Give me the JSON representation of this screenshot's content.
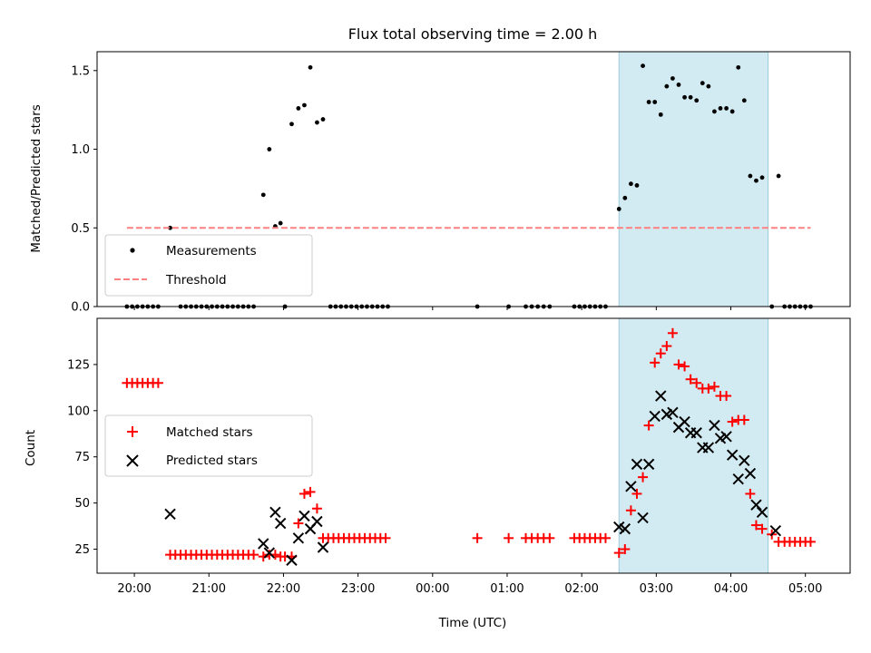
{
  "chart_data": [
    {
      "type": "scatter",
      "title": "Flux total observing time = 2.00 h",
      "xlabel": "",
      "ylabel": "Matched/Predicted stars",
      "xlim": [
        19.5,
        29.6
      ],
      "ylim": [
        0,
        1.62
      ],
      "yticks": [
        0.0,
        0.5,
        1.0,
        1.5
      ],
      "ytick_labels": [
        "0.0",
        "0.5",
        "1.0",
        "1.5"
      ],
      "shaded_span": {
        "x": [
          26.5,
          28.5
        ],
        "color": "#add8e6"
      },
      "legend": {
        "position": "lower-left",
        "entries": [
          "Measurements",
          "Threshold"
        ]
      },
      "series": [
        {
          "name": "Measurements",
          "marker": "dot",
          "color": "#000000",
          "points": [
            [
              19.9,
              0
            ],
            [
              19.97,
              0
            ],
            [
              20.04,
              0
            ],
            [
              20.11,
              0
            ],
            [
              20.18,
              0
            ],
            [
              20.25,
              0
            ],
            [
              20.32,
              0
            ],
            [
              20.48,
              0.5
            ],
            [
              20.62,
              0
            ],
            [
              20.69,
              0
            ],
            [
              20.76,
              0
            ],
            [
              20.83,
              0
            ],
            [
              20.9,
              0
            ],
            [
              20.97,
              0
            ],
            [
              21.04,
              0
            ],
            [
              21.11,
              0
            ],
            [
              21.18,
              0
            ],
            [
              21.25,
              0
            ],
            [
              21.32,
              0
            ],
            [
              21.39,
              0
            ],
            [
              21.46,
              0
            ],
            [
              21.53,
              0
            ],
            [
              21.6,
              0
            ],
            [
              21.73,
              0.71
            ],
            [
              21.81,
              1.0
            ],
            [
              21.89,
              0.51
            ],
            [
              21.96,
              0.53
            ],
            [
              22.02,
              0
            ],
            [
              22.11,
              1.16
            ],
            [
              22.2,
              1.26
            ],
            [
              22.28,
              1.28
            ],
            [
              22.36,
              1.52
            ],
            [
              22.45,
              1.17
            ],
            [
              22.53,
              1.19
            ],
            [
              22.63,
              0
            ],
            [
              22.7,
              0
            ],
            [
              22.77,
              0
            ],
            [
              22.84,
              0
            ],
            [
              22.91,
              0
            ],
            [
              22.98,
              0
            ],
            [
              23.05,
              0
            ],
            [
              23.12,
              0
            ],
            [
              23.19,
              0
            ],
            [
              23.26,
              0
            ],
            [
              23.33,
              0
            ],
            [
              23.4,
              0
            ],
            [
              24.6,
              0
            ],
            [
              25.02,
              0
            ],
            [
              25.25,
              0
            ],
            [
              25.33,
              0
            ],
            [
              25.41,
              0
            ],
            [
              25.49,
              0
            ],
            [
              25.57,
              0
            ],
            [
              25.9,
              0
            ],
            [
              25.97,
              0
            ],
            [
              26.04,
              0
            ],
            [
              26.11,
              0
            ],
            [
              26.18,
              0
            ],
            [
              26.25,
              0
            ],
            [
              26.32,
              0
            ],
            [
              26.5,
              0.62
            ],
            [
              26.58,
              0.69
            ],
            [
              26.66,
              0.78
            ],
            [
              26.74,
              0.77
            ],
            [
              26.82,
              1.53
            ],
            [
              26.9,
              1.3
            ],
            [
              26.98,
              1.3
            ],
            [
              27.06,
              1.22
            ],
            [
              27.14,
              1.4
            ],
            [
              27.22,
              1.45
            ],
            [
              27.3,
              1.41
            ],
            [
              27.38,
              1.33
            ],
            [
              27.46,
              1.33
            ],
            [
              27.54,
              1.31
            ],
            [
              27.62,
              1.42
            ],
            [
              27.7,
              1.4
            ],
            [
              27.78,
              1.24
            ],
            [
              27.86,
              1.26
            ],
            [
              27.94,
              1.26
            ],
            [
              28.02,
              1.24
            ],
            [
              28.1,
              1.52
            ],
            [
              28.18,
              1.31
            ],
            [
              28.26,
              0.83
            ],
            [
              28.34,
              0.8
            ],
            [
              28.42,
              0.82
            ],
            [
              28.55,
              0
            ],
            [
              28.64,
              0.83
            ],
            [
              28.72,
              0
            ],
            [
              28.79,
              0
            ],
            [
              28.86,
              0
            ],
            [
              28.93,
              0
            ],
            [
              29.0,
              0
            ],
            [
              29.07,
              0
            ]
          ]
        },
        {
          "name": "Threshold",
          "marker": "dashed-line",
          "color": "#ff8080",
          "x": [
            19.9,
            29.07
          ],
          "y": [
            0.5,
            0.5
          ]
        }
      ]
    },
    {
      "type": "scatter",
      "title": "",
      "xlabel": "Time (UTC)",
      "ylabel": "Count",
      "xlim": [
        19.5,
        29.6
      ],
      "ylim": [
        12,
        150
      ],
      "yticks": [
        25,
        50,
        75,
        100,
        125
      ],
      "ytick_labels": [
        "25",
        "50",
        "75",
        "100",
        "125"
      ],
      "xticks": [
        20,
        21,
        22,
        23,
        24,
        25,
        26,
        27,
        28,
        29
      ],
      "xtick_labels": [
        "20:00",
        "21:00",
        "22:00",
        "23:00",
        "00:00",
        "01:00",
        "02:00",
        "03:00",
        "04:00",
        "05:00"
      ],
      "shaded_span": {
        "x": [
          26.5,
          28.5
        ],
        "color": "#add8e6"
      },
      "legend": {
        "position": "center-left",
        "entries": [
          "Matched stars",
          "Predicted stars"
        ]
      },
      "series": [
        {
          "name": "Matched stars",
          "marker": "plus",
          "color": "#ff0000",
          "points": [
            [
              19.9,
              115
            ],
            [
              19.97,
              115
            ],
            [
              20.04,
              115
            ],
            [
              20.11,
              115
            ],
            [
              20.18,
              115
            ],
            [
              20.25,
              115
            ],
            [
              20.32,
              115
            ],
            [
              20.48,
              22
            ],
            [
              20.55,
              22
            ],
            [
              20.62,
              22
            ],
            [
              20.69,
              22
            ],
            [
              20.76,
              22
            ],
            [
              20.83,
              22
            ],
            [
              20.9,
              22
            ],
            [
              20.97,
              22
            ],
            [
              21.04,
              22
            ],
            [
              21.11,
              22
            ],
            [
              21.18,
              22
            ],
            [
              21.25,
              22
            ],
            [
              21.32,
              22
            ],
            [
              21.39,
              22
            ],
            [
              21.46,
              22
            ],
            [
              21.53,
              22
            ],
            [
              21.6,
              22
            ],
            [
              21.73,
              21
            ],
            [
              21.81,
              22
            ],
            [
              21.89,
              22
            ],
            [
              21.96,
              21
            ],
            [
              22.02,
              21
            ],
            [
              22.11,
              21
            ],
            [
              22.2,
              39
            ],
            [
              22.28,
              55
            ],
            [
              22.36,
              56
            ],
            [
              22.45,
              47
            ],
            [
              22.53,
              31
            ],
            [
              22.6,
              31
            ],
            [
              22.67,
              31
            ],
            [
              22.74,
              31
            ],
            [
              22.81,
              31
            ],
            [
              22.88,
              31
            ],
            [
              22.95,
              31
            ],
            [
              23.02,
              31
            ],
            [
              23.09,
              31
            ],
            [
              23.16,
              31
            ],
            [
              23.23,
              31
            ],
            [
              23.3,
              31
            ],
            [
              23.37,
              31
            ],
            [
              24.6,
              31
            ],
            [
              25.02,
              31
            ],
            [
              25.25,
              31
            ],
            [
              25.33,
              31
            ],
            [
              25.41,
              31
            ],
            [
              25.49,
              31
            ],
            [
              25.57,
              31
            ],
            [
              25.9,
              31
            ],
            [
              25.97,
              31
            ],
            [
              26.04,
              31
            ],
            [
              26.11,
              31
            ],
            [
              26.18,
              31
            ],
            [
              26.25,
              31
            ],
            [
              26.32,
              31
            ],
            [
              26.5,
              23
            ],
            [
              26.58,
              25
            ],
            [
              26.66,
              46
            ],
            [
              26.74,
              55
            ],
            [
              26.82,
              64
            ],
            [
              26.9,
              92
            ],
            [
              26.98,
              126
            ],
            [
              27.06,
              131
            ],
            [
              27.14,
              135
            ],
            [
              27.22,
              142
            ],
            [
              27.3,
              125
            ],
            [
              27.38,
              124
            ],
            [
              27.46,
              117
            ],
            [
              27.54,
              115
            ],
            [
              27.62,
              112
            ],
            [
              27.7,
              112
            ],
            [
              27.78,
              113
            ],
            [
              27.86,
              108
            ],
            [
              27.94,
              108
            ],
            [
              28.02,
              94
            ],
            [
              28.1,
              95
            ],
            [
              28.18,
              95
            ],
            [
              28.26,
              55
            ],
            [
              28.34,
              38
            ],
            [
              28.42,
              36
            ],
            [
              28.55,
              33
            ],
            [
              28.64,
              29
            ],
            [
              28.72,
              29
            ],
            [
              28.79,
              29
            ],
            [
              28.86,
              29
            ],
            [
              28.93,
              29
            ],
            [
              29.0,
              29
            ],
            [
              29.07,
              29
            ]
          ]
        },
        {
          "name": "Predicted stars",
          "marker": "x",
          "color": "#000000",
          "points": [
            [
              20.48,
              44
            ],
            [
              21.73,
              28
            ],
            [
              21.81,
              23
            ],
            [
              21.89,
              45
            ],
            [
              21.96,
              39
            ],
            [
              22.11,
              19
            ],
            [
              22.2,
              31
            ],
            [
              22.28,
              43
            ],
            [
              22.36,
              36
            ],
            [
              22.45,
              40
            ],
            [
              22.53,
              26
            ],
            [
              26.5,
              37
            ],
            [
              26.58,
              36
            ],
            [
              26.66,
              59
            ],
            [
              26.74,
              71
            ],
            [
              26.82,
              42
            ],
            [
              26.9,
              71
            ],
            [
              26.98,
              97
            ],
            [
              27.06,
              108
            ],
            [
              27.14,
              98
            ],
            [
              27.22,
              99
            ],
            [
              27.3,
              91
            ],
            [
              27.38,
              94
            ],
            [
              27.46,
              88
            ],
            [
              27.54,
              88
            ],
            [
              27.62,
              80
            ],
            [
              27.7,
              80
            ],
            [
              27.78,
              92
            ],
            [
              27.86,
              85
            ],
            [
              27.94,
              86
            ],
            [
              28.02,
              76
            ],
            [
              28.1,
              63
            ],
            [
              28.18,
              73
            ],
            [
              28.26,
              66
            ],
            [
              28.34,
              49
            ],
            [
              28.42,
              45
            ],
            [
              28.6,
              35
            ]
          ]
        }
      ]
    }
  ]
}
